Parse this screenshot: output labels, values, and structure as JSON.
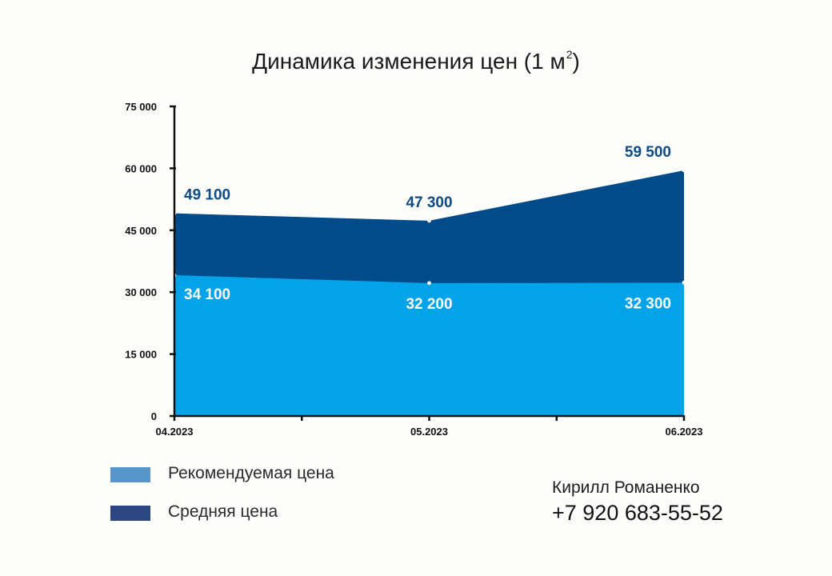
{
  "chart_data": {
    "type": "area",
    "title": "Динамика изменения цен (1 м",
    "title_superscript": "2",
    "title_suffix": ")",
    "categories": [
      "04.2023",
      "05.2023",
      "06.2023"
    ],
    "series": [
      {
        "name": "Рекомендуемая цена",
        "values": [
          34100,
          32200,
          32300
        ],
        "labels": [
          "34 100",
          "32 200",
          "32 300"
        ],
        "color": "#03a3ea",
        "label_color": "#ffffff"
      },
      {
        "name": "Средняя цена",
        "values": [
          49100,
          47300,
          59500
        ],
        "labels": [
          "49 100",
          "47 300",
          "59 500"
        ],
        "color": "#014b8a",
        "label_color": "#0d4a86"
      }
    ],
    "ylim": [
      0,
      75000
    ],
    "yticks": [
      0,
      15000,
      30000,
      45000,
      60000,
      75000
    ],
    "ytick_labels": [
      "0",
      "15 000",
      "30 000",
      "45 000",
      "60 000",
      "75 000"
    ],
    "grid": false,
    "legend_position": "bottom-left"
  },
  "legend": {
    "colors": [
      "#5896c9",
      "#2b4680"
    ]
  },
  "contact": {
    "name": "Кирилл Романенко",
    "phone": "+7 920 683-55-52"
  }
}
